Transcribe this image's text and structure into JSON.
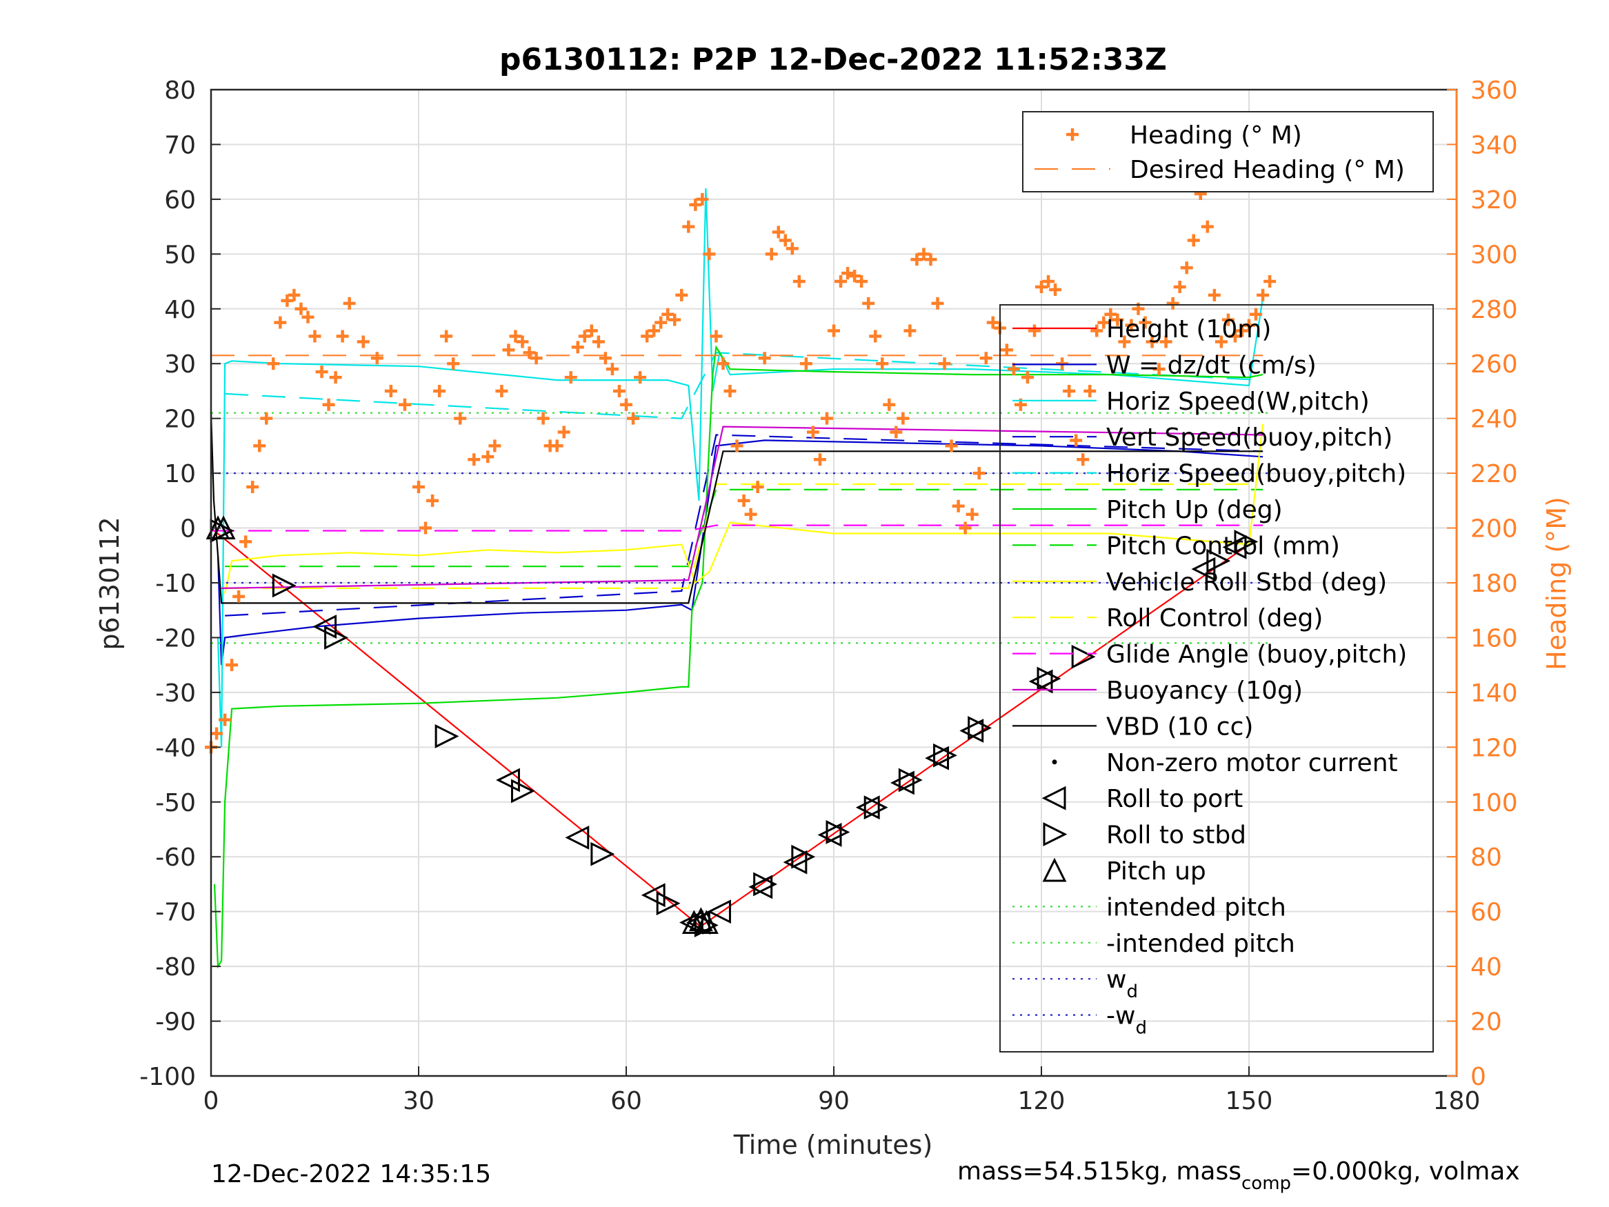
{
  "chart_data": {
    "type": "line",
    "title": "p6130112: P2P 12-Dec-2022 11:52:33Z",
    "xlabel": "Time (minutes)",
    "ylabel_left": "p6130112",
    "ylabel_right": "Heading (°M)",
    "xlim": [
      0,
      180
    ],
    "ylim_left": [
      -100,
      80
    ],
    "ylim_right": [
      0,
      360
    ],
    "x_ticks": [
      "0",
      "30",
      "60",
      "90",
      "120",
      "150",
      "180"
    ],
    "y_ticks_left": [
      "80",
      "70",
      "60",
      "50",
      "40",
      "30",
      "20",
      "10",
      "0",
      "-10",
      "-20",
      "-30",
      "-40",
      "-50",
      "-60",
      "-70",
      "-80",
      "-90",
      "-100"
    ],
    "y_ticks_right": [
      "360",
      "340",
      "320",
      "300",
      "280",
      "260",
      "240",
      "220",
      "200",
      "180",
      "160",
      "140",
      "120",
      "100",
      "80",
      "60",
      "40",
      "20",
      "0"
    ],
    "grid": true,
    "footer_left": "12-Dec-2022 14:35:15",
    "footer_right_parts": [
      "mass=54.515kg, mass",
      "comp",
      "=0.000kg, volmax"
    ],
    "legend_right_axis": {
      "placement": "top-right",
      "entries": [
        {
          "label": "Heading (° M)",
          "style": "plus",
          "color": "#ff7f27"
        },
        {
          "label": "Desired Heading (° M)",
          "style": "dash",
          "color": "#ff7f27"
        }
      ]
    },
    "legend_left_axis": {
      "placement": "right",
      "entries": [
        {
          "label": "Height (10m)",
          "style": "solid",
          "color": "#ff0000"
        },
        {
          "label": "W = dz/dt (cm/s)",
          "style": "solid",
          "color": "#0000cc"
        },
        {
          "label": "Horiz Speed(W,pitch)",
          "style": "solid",
          "color": "#00e5e5"
        },
        {
          "label": "Vert Speed(buoy,pitch)",
          "style": "dash",
          "color": "#0000cc"
        },
        {
          "label": "Horiz Speed(buoy,pitch)",
          "style": "dash",
          "color": "#00e5e5"
        },
        {
          "label": "Pitch Up (deg)",
          "style": "solid",
          "color": "#00dd00"
        },
        {
          "label": "Pitch Control (mm)",
          "style": "dash",
          "color": "#00dd00"
        },
        {
          "label": "Vehicle Roll Stbd (deg)",
          "style": "solid",
          "color": "#ffff00"
        },
        {
          "label": "Roll Control (deg)",
          "style": "dash",
          "color": "#ffff00"
        },
        {
          "label": "Glide Angle (buoy,pitch)",
          "style": "dash",
          "color": "#ff00ff"
        },
        {
          "label": "Buoyancy (10g)",
          "style": "solid",
          "color": "#cc00cc"
        },
        {
          "label": "VBD (10 cc)",
          "style": "solid",
          "color": "#000000"
        },
        {
          "label": "Non-zero motor current",
          "style": "dot",
          "color": "#000000"
        },
        {
          "label": "Roll to port",
          "style": "tri-left",
          "color": "#000000"
        },
        {
          "label": "Roll to stbd",
          "style": "tri-right",
          "color": "#000000"
        },
        {
          "label": "Pitch up",
          "style": "tri-up",
          "color": "#000000"
        },
        {
          "label": "intended pitch",
          "style": "dotted",
          "color": "#33dd33"
        },
        {
          "label": "-intended pitch",
          "style": "dotted",
          "color": "#33dd33"
        },
        {
          "label": "w",
          "sub": "d",
          "style": "dotted",
          "color": "#2222cc"
        },
        {
          "label": "-w",
          "sub": "d",
          "style": "dotted",
          "color": "#2222cc"
        }
      ]
    },
    "series": [
      {
        "name": "Height (10m)",
        "color": "#ff0000",
        "style": "solid",
        "x": [
          0,
          70.5,
          71,
          150
        ],
        "y": [
          0,
          -72.5,
          -72.5,
          -3
        ]
      },
      {
        "name": "W = dz/dt (cm/s)",
        "color": "#0000cc",
        "style": "solid",
        "x": [
          1,
          1.5,
          2,
          5,
          15,
          30,
          45,
          60,
          68,
          69.5,
          73,
          80,
          100,
          120,
          140,
          152
        ],
        "y": [
          -5,
          -25,
          -20,
          -19.5,
          -18,
          -16.5,
          -15.5,
          -15,
          -14,
          -15,
          15,
          16,
          15.5,
          15,
          14,
          13
        ]
      },
      {
        "name": "Horiz Speed(W,pitch)",
        "color": "#00e5e5",
        "style": "solid",
        "x": [
          1,
          1.5,
          2,
          3,
          10,
          30,
          50,
          66,
          69,
          70.5,
          71.5,
          72.5,
          73.5,
          75,
          90,
          110,
          130,
          150,
          152
        ],
        "y": [
          -20,
          -40,
          30,
          30.5,
          30,
          29.5,
          27,
          27,
          26,
          5,
          62,
          25,
          32,
          28,
          29,
          29,
          28,
          26,
          42
        ]
      },
      {
        "name": "Vert Speed(buoy,pitch)",
        "color": "#0000cc",
        "style": "dash",
        "x": [
          2,
          68,
          73,
          152
        ],
        "y": [
          -16,
          -11.5,
          17,
          14
        ]
      },
      {
        "name": "Horiz Speed(buoy,pitch)",
        "color": "#00e5e5",
        "style": "dash",
        "x": [
          2,
          68,
          73,
          152
        ],
        "y": [
          24.5,
          20,
          32,
          27
        ]
      },
      {
        "name": "Pitch Up (deg)",
        "color": "#00dd00",
        "style": "solid",
        "x": [
          0.5,
          1,
          1.5,
          2,
          3,
          10,
          30,
          50,
          60,
          68,
          69,
          69.5,
          71,
          72.5,
          73,
          75,
          90,
          110,
          130,
          150,
          152
        ],
        "y": [
          -65,
          -80,
          -79,
          -50,
          -33,
          -32.5,
          -32,
          -31,
          -30,
          -29,
          -29,
          -15,
          -10,
          28,
          33,
          29,
          28.5,
          28,
          28,
          27.5,
          28
        ]
      },
      {
        "name": "Pitch Control (mm)",
        "color": "#00dd00",
        "style": "dash",
        "x": [
          2,
          69,
          73,
          152
        ],
        "y": [
          -7,
          -7,
          7,
          7
        ]
      },
      {
        "name": "Vehicle Roll Stbd (deg)",
        "color": "#ffff00",
        "style": "solid",
        "x": [
          2,
          3,
          10,
          20,
          30,
          40,
          50,
          60,
          68,
          70,
          72,
          75,
          90,
          110,
          130,
          150,
          152
        ],
        "y": [
          -12,
          -6,
          -5,
          -4.5,
          -5,
          -4,
          -4.5,
          -4,
          -3,
          -10,
          -8,
          1,
          -1,
          -1,
          -1,
          -3,
          19
        ]
      },
      {
        "name": "Roll Control (deg)",
        "color": "#ffff00",
        "style": "dash",
        "x": [
          2,
          69,
          73,
          152
        ],
        "y": [
          -11,
          -11,
          8,
          8
        ]
      },
      {
        "name": "Glide Angle (buoy,pitch)",
        "color": "#ff00ff",
        "style": "dash",
        "x": [
          0,
          69,
          73,
          152
        ],
        "y": [
          -0.5,
          -0.5,
          0.5,
          0.5
        ]
      },
      {
        "name": "Buoyancy (10g)",
        "color": "#cc00cc",
        "style": "solid",
        "x": [
          1.5,
          69,
          74,
          152
        ],
        "y": [
          -11,
          -9.5,
          18.5,
          17
        ]
      },
      {
        "name": "VBD (10 cc)",
        "color": "#000000",
        "style": "solid",
        "x": [
          0,
          0.4,
          1,
          1.5,
          69,
          74,
          152
        ],
        "y": [
          21,
          5,
          -5,
          -13.7,
          -13.7,
          14,
          14
        ]
      },
      {
        "name": "intended pitch",
        "color": "#33dd33",
        "style": "dotted",
        "x": [
          0,
          153
        ],
        "y": [
          21,
          21
        ]
      },
      {
        "name": "-intended pitch",
        "color": "#33dd33",
        "style": "dotted",
        "x": [
          0,
          153
        ],
        "y": [
          -21,
          -21
        ]
      },
      {
        "name": "w_d",
        "color": "#2222cc",
        "style": "dotted",
        "x": [
          0,
          153
        ],
        "y": [
          10,
          10
        ]
      },
      {
        "name": "-w_d",
        "color": "#2222cc",
        "style": "dotted",
        "x": [
          0,
          153
        ],
        "y": [
          -10,
          -10
        ]
      },
      {
        "name": "Desired Heading (° M)",
        "color": "#ff7f27",
        "style": "dash",
        "axis": "right",
        "x": [
          0,
          152
        ],
        "y": [
          263,
          263
        ]
      }
    ],
    "heading_series": {
      "name": "Heading (° M)",
      "axis": "right",
      "color": "#ff7f27",
      "marker": "plus",
      "x": [
        0,
        0.8,
        2,
        3,
        4,
        5,
        6,
        7,
        8,
        9,
        10,
        11,
        12,
        13,
        14,
        15,
        16,
        17,
        18,
        19,
        20,
        22,
        24,
        26,
        28,
        30,
        31,
        32,
        33,
        34,
        35,
        36,
        38,
        40,
        41,
        42,
        43,
        44,
        45,
        46,
        47,
        48,
        49,
        50,
        51,
        52,
        53,
        54,
        55,
        56,
        57,
        58,
        59,
        60,
        61,
        62,
        63,
        64,
        65,
        66,
        67,
        68,
        69,
        70,
        71,
        72,
        73,
        74,
        75,
        76,
        77,
        78,
        79,
        80,
        81,
        82,
        83,
        84,
        85,
        86,
        87,
        88,
        89,
        90,
        91,
        92,
        93,
        94,
        95,
        96,
        97,
        98,
        99,
        100,
        101,
        102,
        103,
        104,
        105,
        106,
        107,
        108,
        109,
        110,
        111,
        112,
        113,
        114,
        115,
        116,
        117,
        118,
        119,
        120,
        121,
        122,
        123,
        124,
        125,
        126,
        127,
        128,
        129,
        130,
        131,
        132,
        133,
        134,
        135,
        136,
        137,
        138,
        139,
        140,
        141,
        142,
        143,
        144,
        145,
        146,
        147,
        148,
        149,
        150,
        151,
        152,
        153
      ],
      "y": [
        120,
        125,
        130,
        150,
        175,
        195,
        215,
        230,
        240,
        260,
        275,
        283,
        285,
        280,
        277,
        270,
        257,
        245,
        255,
        270,
        282,
        268,
        262,
        250,
        245,
        215,
        200,
        210,
        250,
        270,
        260,
        240,
        225,
        226,
        230,
        250,
        265,
        270,
        268,
        264,
        262,
        240,
        230,
        230,
        235,
        255,
        266,
        270,
        272,
        268,
        262,
        258,
        250,
        245,
        240,
        255,
        270,
        272,
        275,
        278,
        276,
        285,
        310,
        318,
        320,
        300,
        270,
        260,
        250,
        230,
        210,
        205,
        215,
        262,
        300,
        308,
        305,
        302,
        290,
        260,
        235,
        225,
        240,
        272,
        290,
        293,
        292,
        290,
        282,
        270,
        260,
        245,
        235,
        240,
        272,
        298,
        300,
        298,
        282,
        260,
        230,
        208,
        200,
        205,
        220,
        262,
        275,
        273,
        265,
        258,
        245,
        255,
        272,
        288,
        290,
        287,
        260,
        250,
        232,
        225,
        250,
        272,
        275,
        278,
        276,
        268,
        274,
        280,
        275,
        268,
        258,
        268,
        282,
        288,
        295,
        305,
        322,
        310,
        285,
        268,
        276,
        270,
        272,
        274,
        278,
        285,
        290
      ]
    },
    "markers": {
      "roll_to_port": {
        "x": [
          16.5,
          43,
          53,
          64,
          69.5,
          70.5,
          73.5,
          79.5,
          84.5,
          89.5,
          95,
          100,
          105,
          110,
          120,
          143.5,
          148
        ],
        "y": [
          -18,
          -46,
          -56.5,
          -67,
          -72,
          -72,
          -70,
          -65.5,
          -61,
          -56,
          -51,
          -46.5,
          -42,
          -37,
          -28,
          -7.5,
          -3.5
        ]
      },
      "roll_to_stbd": {
        "x": [
          1.5,
          10.5,
          18,
          34,
          45,
          56.5,
          66,
          71.5,
          80,
          85.5,
          90.5,
          96,
          101,
          106,
          111,
          121,
          126,
          145.5,
          149.5
        ],
        "y": [
          -0.5,
          -10.5,
          -20,
          -38,
          -48,
          -59.5,
          -68.5,
          -72.5,
          -65,
          -60,
          -55.5,
          -51,
          -46,
          -41.5,
          -36.5,
          -27.5,
          -23.5,
          -6,
          -2.5
        ]
      },
      "pitch_up": {
        "x": [
          1,
          1.8,
          69.8,
          70.8,
          71.6
        ],
        "y": [
          0,
          0,
          -72,
          -71.5,
          -72
        ]
      }
    }
  }
}
